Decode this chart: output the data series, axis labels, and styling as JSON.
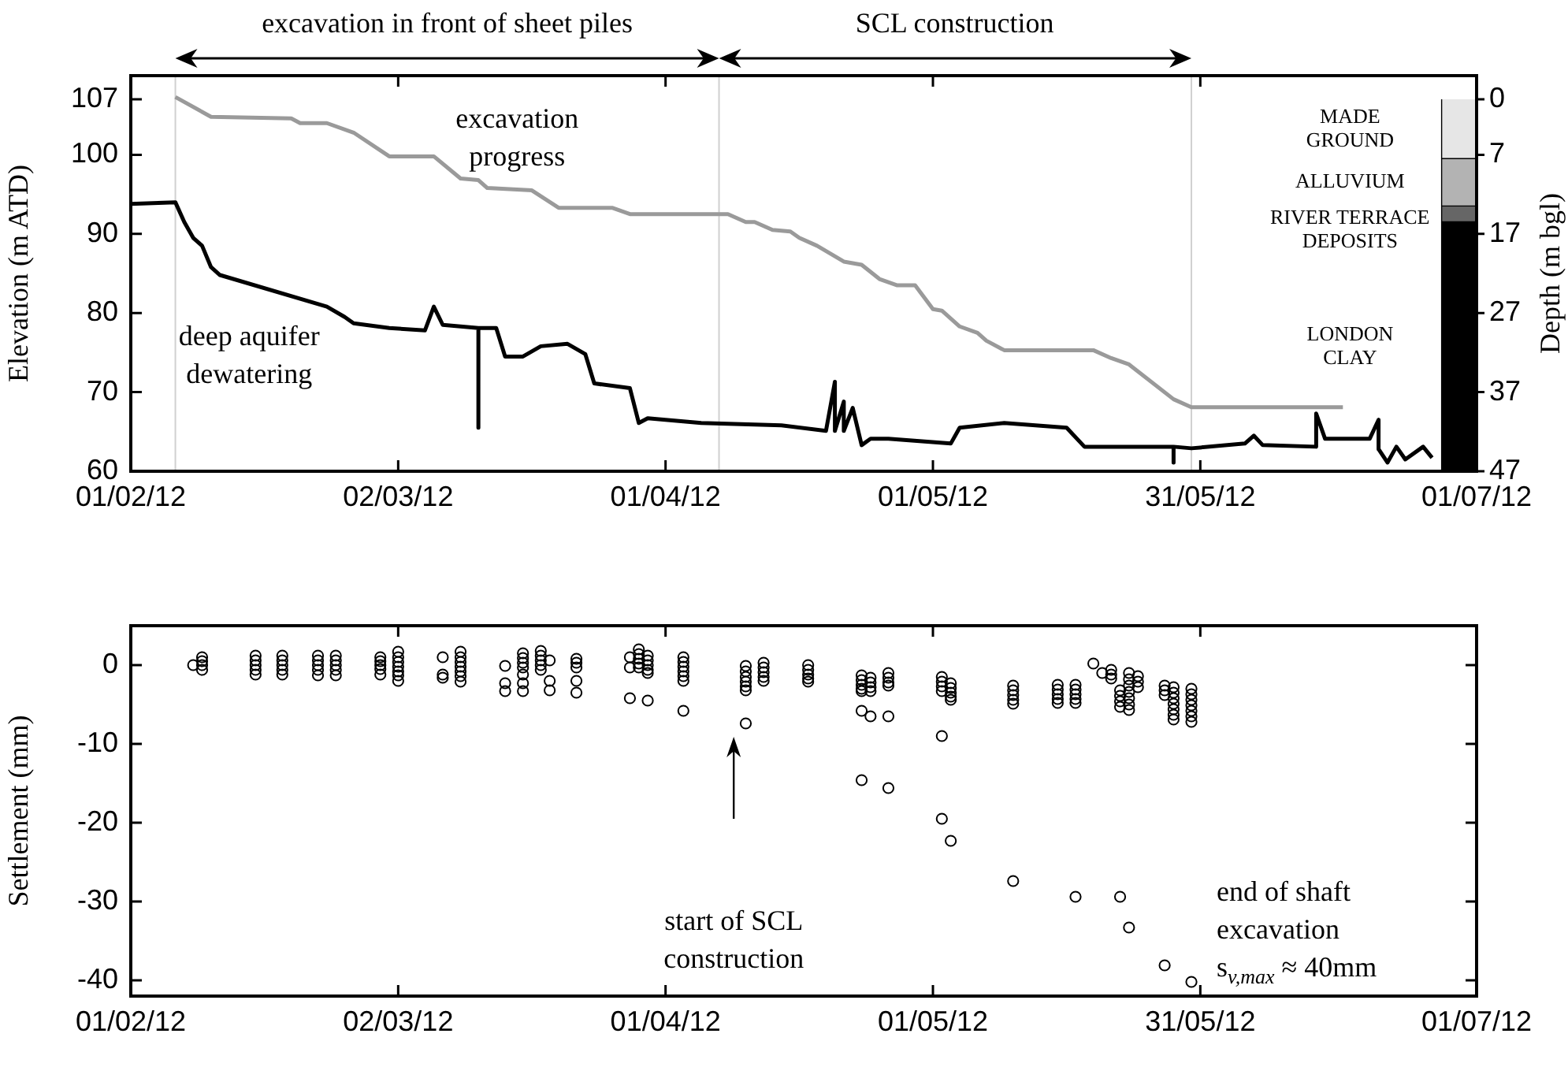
{
  "chart_data": [
    {
      "type": "line",
      "ylabel": "Elevation (m ATD)",
      "y2label": "Depth (m bgl)",
      "marker": "none",
      "xlim": [
        "2012-02-01",
        "2012-07-01"
      ],
      "xticks": [
        {
          "value": "2012-02-01",
          "label": "01/02/12"
        },
        {
          "value": "2012-03-02",
          "label": "02/03/12"
        },
        {
          "value": "2012-04-01",
          "label": "01/04/12"
        },
        {
          "value": "2012-05-01",
          "label": "01/05/12"
        },
        {
          "value": "2012-05-31",
          "label": "31/05/12"
        },
        {
          "value": "2012-07-01",
          "label": "01/07/12"
        }
      ],
      "ylim": [
        60,
        110
      ],
      "yticks": [
        60,
        70,
        80,
        90,
        100,
        107
      ],
      "y2lim": [
        47,
        -3
      ],
      "y2ticks": [
        0,
        7,
        17,
        27,
        37,
        47
      ],
      "series": [
        {
          "color": "#000000",
          "x": [
            "2012-02-01",
            "2012-02-06",
            "2012-02-07",
            "2012-02-08",
            "2012-02-09",
            "2012-02-10",
            "2012-02-11",
            "2012-02-23",
            "2012-02-25",
            "2012-02-26",
            "2012-03-01",
            "2012-03-05",
            "2012-03-06",
            "2012-03-07",
            "2012-03-11",
            "2012-03-11",
            "2012-03-11",
            "2012-03-13",
            "2012-03-14",
            "2012-03-16",
            "2012-03-18",
            "2012-03-21",
            "2012-03-23",
            "2012-03-24",
            "2012-03-28",
            "2012-03-29",
            "2012-03-30",
            "2012-04-05",
            "2012-04-14",
            "2012-04-19",
            "2012-04-20",
            "2012-04-20",
            "2012-04-21",
            "2012-04-21",
            "2012-04-22",
            "2012-04-23",
            "2012-04-24",
            "2012-04-26",
            "2012-05-03",
            "2012-05-04",
            "2012-05-09",
            "2012-05-16",
            "2012-05-18",
            "2012-05-28",
            "2012-05-28",
            "2012-05-28",
            "2012-05-30",
            "2012-06-05",
            "2012-06-06",
            "2012-06-07",
            "2012-06-13",
            "2012-06-13",
            "2012-06-14",
            "2012-06-19",
            "2012-06-20",
            "2012-06-20",
            "2012-06-21",
            "2012-06-22",
            "2012-06-23",
            "2012-06-25",
            "2012-06-26"
          ],
          "values": [
            93.8,
            94.0,
            91.5,
            89.5,
            88.5,
            85.8,
            84.8,
            80.8,
            79.5,
            78.7,
            78.1,
            77.8,
            80.8,
            78.5,
            78.1,
            65.5,
            78.1,
            78.1,
            74.5,
            74.5,
            75.8,
            76.1,
            74.8,
            71.1,
            70.5,
            66.1,
            66.7,
            66.1,
            65.8,
            65.1,
            71.3,
            65.1,
            68.8,
            65.1,
            68.0,
            63.3,
            64.1,
            64.1,
            63.5,
            65.5,
            66.1,
            65.5,
            63.1,
            63.1,
            61.1,
            63.1,
            62.9,
            63.5,
            64.5,
            63.3,
            63.1,
            67.3,
            64.1,
            64.1,
            66.5,
            62.8,
            61.1,
            63.1,
            61.5,
            63.1,
            61.7
          ]
        },
        {
          "color": "#9a9a9a",
          "x": [
            "2012-02-06",
            "2012-02-10",
            "2012-02-19",
            "2012-02-20",
            "2012-02-23",
            "2012-02-26",
            "2012-03-01",
            "2012-03-06",
            "2012-03-09",
            "2012-03-11",
            "2012-03-12",
            "2012-03-17",
            "2012-03-20",
            "2012-03-26",
            "2012-03-28",
            "2012-04-08",
            "2012-04-10",
            "2012-04-11",
            "2012-04-13",
            "2012-04-15",
            "2012-04-16",
            "2012-04-18",
            "2012-04-21",
            "2012-04-23",
            "2012-04-25",
            "2012-04-27",
            "2012-04-29",
            "2012-05-01",
            "2012-05-02",
            "2012-05-04",
            "2012-05-06",
            "2012-05-07",
            "2012-05-09",
            "2012-05-19",
            "2012-05-21",
            "2012-05-23",
            "2012-05-28",
            "2012-05-30",
            "2012-06-16"
          ],
          "values": [
            107.3,
            104.8,
            104.6,
            104.0,
            104.0,
            102.8,
            99.8,
            99.8,
            97.0,
            96.8,
            95.8,
            95.5,
            93.3,
            93.3,
            92.5,
            92.5,
            91.5,
            91.5,
            90.5,
            90.3,
            89.5,
            88.5,
            86.5,
            86.1,
            84.3,
            83.5,
            83.5,
            80.5,
            80.3,
            78.3,
            77.5,
            76.5,
            75.3,
            75.3,
            74.3,
            73.5,
            69.1,
            68.1,
            68.1
          ]
        },
        {
          "type": "bar",
          "axis": "y2",
          "name": "MADE\nGROUND",
          "color": "#e6e6e6",
          "x": [
            "2012-06-29"
          ],
          "values": [
            7.5
          ]
        },
        {
          "type": "bar",
          "axis": "y2",
          "name": "ALLUVIUM",
          "color": "#b3b3b3",
          "x": [
            "2012-06-29"
          ],
          "values": [
            6
          ]
        },
        {
          "type": "bar",
          "axis": "y2",
          "name": "RIVER TERRACE\nDEPOSITS",
          "color": "#666666",
          "x": [
            "2012-06-29"
          ],
          "values": [
            2
          ]
        },
        {
          "type": "bar",
          "axis": "y2",
          "name": "LONDON\nCLAY",
          "color": "#000000",
          "x": [
            "2012-06-29"
          ],
          "values": [
            31.5
          ]
        }
      ],
      "stacked": true,
      "ref_lines": [
        {
          "axis": "x",
          "value": "2012-02-06",
          "color": "#d0d0d0"
        },
        {
          "axis": "x",
          "value": "2012-04-07",
          "color": "#d0d0d0"
        },
        {
          "axis": "x",
          "value": "2012-05-30",
          "color": "#d0d0d0"
        }
      ],
      "annotations": [
        "excavation in front of sheet piles",
        "SCL construction",
        "excavation\nprogress",
        "deep aquifer\ndewatering"
      ]
    },
    {
      "type": "scatter",
      "ylabel": "Settlement (mm)",
      "marker": "circle",
      "xlim": [
        "2012-02-01",
        "2012-07-01"
      ],
      "xticks": [
        {
          "value": "2012-02-01",
          "label": "01/02/12"
        },
        {
          "value": "2012-03-02",
          "label": "02/03/12"
        },
        {
          "value": "2012-04-01",
          "label": "01/04/12"
        },
        {
          "value": "2012-05-01",
          "label": "01/05/12"
        },
        {
          "value": "2012-05-31",
          "label": "31/05/12"
        },
        {
          "value": "2012-07-01",
          "label": "01/07/12"
        }
      ],
      "ylim": [
        -42,
        5
      ],
      "yticks": [
        -40,
        -30,
        -20,
        -10,
        0
      ],
      "series": [
        {
          "color": "#000000",
          "x": [
            "2012-02-08",
            "2012-02-09",
            "2012-02-09",
            "2012-02-09",
            "2012-02-09",
            "2012-02-15",
            "2012-02-15",
            "2012-02-15",
            "2012-02-15",
            "2012-02-15",
            "2012-02-18",
            "2012-02-18",
            "2012-02-18",
            "2012-02-18",
            "2012-02-18",
            "2012-02-22",
            "2012-02-22",
            "2012-02-22",
            "2012-02-22",
            "2012-02-22",
            "2012-02-24",
            "2012-02-24",
            "2012-02-24",
            "2012-02-24",
            "2012-02-24",
            "2012-02-29",
            "2012-02-29",
            "2012-02-29",
            "2012-02-29",
            "2012-02-29",
            "2012-03-02",
            "2012-03-02",
            "2012-03-02",
            "2012-03-02",
            "2012-03-02",
            "2012-03-02",
            "2012-03-02",
            "2012-03-07",
            "2012-03-07",
            "2012-03-07",
            "2012-03-09",
            "2012-03-09",
            "2012-03-09",
            "2012-03-09",
            "2012-03-09",
            "2012-03-09",
            "2012-03-09",
            "2012-03-14",
            "2012-03-14",
            "2012-03-14",
            "2012-03-16",
            "2012-03-16",
            "2012-03-16",
            "2012-03-16",
            "2012-03-16",
            "2012-03-16",
            "2012-03-16",
            "2012-03-18",
            "2012-03-18",
            "2012-03-18",
            "2012-03-18",
            "2012-03-18",
            "2012-03-19",
            "2012-03-19",
            "2012-03-19",
            "2012-03-22",
            "2012-03-22",
            "2012-03-22",
            "2012-03-22",
            "2012-03-22",
            "2012-03-28",
            "2012-03-28",
            "2012-03-28",
            "2012-03-29",
            "2012-03-29",
            "2012-03-29",
            "2012-03-29",
            "2012-03-29",
            "2012-03-30",
            "2012-03-30",
            "2012-03-30",
            "2012-03-30",
            "2012-03-30",
            "2012-03-30",
            "2012-04-03",
            "2012-04-03",
            "2012-04-03",
            "2012-04-03",
            "2012-04-03",
            "2012-04-03",
            "2012-04-03",
            "2012-04-10",
            "2012-04-10",
            "2012-04-10",
            "2012-04-10",
            "2012-04-10",
            "2012-04-10",
            "2012-04-10",
            "2012-04-12",
            "2012-04-12",
            "2012-04-12",
            "2012-04-12",
            "2012-04-12",
            "2012-04-17",
            "2012-04-17",
            "2012-04-17",
            "2012-04-17",
            "2012-04-17",
            "2012-04-23",
            "2012-04-23",
            "2012-04-23",
            "2012-04-23",
            "2012-04-23",
            "2012-04-23",
            "2012-04-23",
            "2012-04-24",
            "2012-04-24",
            "2012-04-24",
            "2012-04-24",
            "2012-04-24",
            "2012-04-26",
            "2012-04-26",
            "2012-04-26",
            "2012-04-26",
            "2012-04-26",
            "2012-04-26",
            "2012-05-02",
            "2012-05-02",
            "2012-05-02",
            "2012-05-02",
            "2012-05-02",
            "2012-05-02",
            "2012-05-03",
            "2012-05-03",
            "2012-05-03",
            "2012-05-03",
            "2012-05-03",
            "2012-05-03",
            "2012-05-10",
            "2012-05-10",
            "2012-05-10",
            "2012-05-10",
            "2012-05-10",
            "2012-05-10",
            "2012-05-15",
            "2012-05-15",
            "2012-05-15",
            "2012-05-15",
            "2012-05-15",
            "2012-05-17",
            "2012-05-17",
            "2012-05-17",
            "2012-05-17",
            "2012-05-17",
            "2012-05-17",
            "2012-05-19",
            "2012-05-20",
            "2012-05-21",
            "2012-05-21",
            "2012-05-21",
            "2012-05-22",
            "2012-05-22",
            "2012-05-22",
            "2012-05-22",
            "2012-05-22",
            "2012-05-23",
            "2012-05-23",
            "2012-05-23",
            "2012-05-23",
            "2012-05-23",
            "2012-05-23",
            "2012-05-23",
            "2012-05-23",
            "2012-05-24",
            "2012-05-24",
            "2012-05-24",
            "2012-05-27",
            "2012-05-27",
            "2012-05-27",
            "2012-05-27",
            "2012-05-28",
            "2012-05-28",
            "2012-05-28",
            "2012-05-28",
            "2012-05-28",
            "2012-05-28",
            "2012-05-28",
            "2012-05-30",
            "2012-05-30",
            "2012-05-30",
            "2012-05-30",
            "2012-05-30",
            "2012-05-30",
            "2012-05-30",
            "2012-05-30"
          ],
          "values": [
            0,
            1.0,
            0.5,
            0,
            -0.6,
            1.2,
            0.6,
            0,
            -0.6,
            -1.2,
            1.2,
            0.6,
            0,
            -0.6,
            -1.2,
            1.2,
            0.6,
            0,
            -0.6,
            -1.3,
            1.2,
            0.6,
            0,
            -0.6,
            -1.3,
            1.0,
            0.5,
            0,
            -0.5,
            -1.2,
            1.7,
            1.0,
            0.4,
            -0.2,
            -0.8,
            -1.3,
            -2.0,
            1.0,
            -1.2,
            -1.6,
            1.7,
            1.0,
            0.4,
            -0.2,
            -0.8,
            -1.4,
            -2.1,
            -0.1,
            -2.3,
            -3.3,
            1.5,
            0.9,
            0.3,
            -0.3,
            -1.2,
            -2.3,
            -3.3,
            1.8,
            1.2,
            0.6,
            0,
            -0.6,
            0.6,
            -2.0,
            -3.2,
            0.8,
            0.3,
            -0.3,
            -2.0,
            -3.5,
            1.0,
            -0.3,
            -4.2,
            2.0,
            1.4,
            0.8,
            0.2,
            -0.3,
            1.2,
            0.6,
            0,
            -0.6,
            -1.0,
            -4.5,
            1.0,
            0.4,
            -0.2,
            -0.8,
            -1.4,
            -2.0,
            -5.8,
            -0.1,
            -0.8,
            -1.5,
            -2.1,
            -2.7,
            -3.2,
            -7.4,
            0.3,
            -0.3,
            -0.9,
            -1.5,
            -2.0,
            0,
            -0.6,
            -1.2,
            -1.7,
            -2.1,
            -1.3,
            -1.9,
            -2.5,
            -3.0,
            -3.3,
            -5.8,
            -14.6,
            -1.6,
            -2.2,
            -2.8,
            -3.3,
            -6.5,
            -1.0,
            -1.6,
            -2.2,
            -2.6,
            -6.5,
            -15.6,
            -1.5,
            -2.1,
            -2.7,
            -3.3,
            -9.0,
            -19.5,
            -2.3,
            -2.9,
            -3.5,
            -4.0,
            -4.4,
            -22.3,
            -2.6,
            -3.2,
            -3.8,
            -4.4,
            -4.9,
            -27.4,
            -2.5,
            -3.1,
            -3.7,
            -4.3,
            -4.8,
            -2.5,
            -3.1,
            -3.7,
            -4.3,
            -4.8,
            -29.4,
            0.2,
            -1.0,
            -0.6,
            -1.2,
            -1.7,
            -3.2,
            -3.9,
            -4.6,
            -5.3,
            -29.4,
            -1.0,
            -1.8,
            -2.6,
            -3.4,
            -4.2,
            -5.0,
            -5.7,
            -33.3,
            -1.4,
            -2.1,
            -2.8,
            -2.6,
            -3.2,
            -3.8,
            -38.1,
            -2.8,
            -3.5,
            -4.2,
            -4.9,
            -5.6,
            -6.3,
            -6.9,
            -3.0,
            -3.7,
            -4.4,
            -5.1,
            -5.8,
            -6.5,
            -7.2,
            -40.2
          ]
        }
      ],
      "annotations": [
        "start of SCL\nconstruction",
        {
          "text": "end of shaft\nexcavation\ns$_{v,max}$ ≈ 40mm",
          "x": "2012-05-30",
          "y": -40.2
        }
      ]
    }
  ]
}
